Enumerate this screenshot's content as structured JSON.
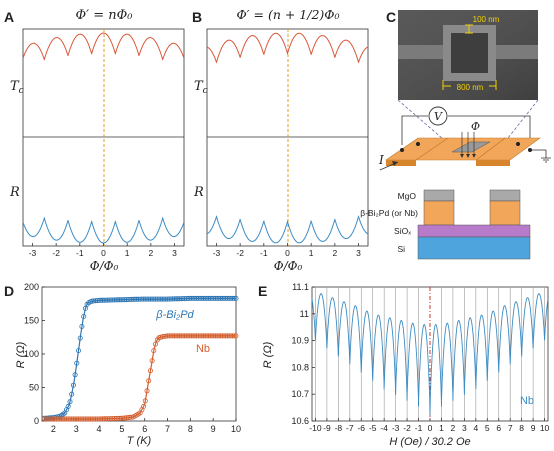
{
  "panels": {
    "A": {
      "label": "A",
      "title": "Φ′ = nΦ₀"
    },
    "B": {
      "label": "B",
      "title": "Φ′ = (n + 1/2)Φ₀"
    },
    "C": {
      "label": "C"
    },
    "D": {
      "label": "D"
    },
    "E": {
      "label": "E"
    }
  },
  "chart_data": [
    {
      "panel": "A",
      "type": "line",
      "title": "Φ′ = nΦ₀",
      "xlabel": "Φ/Φ₀",
      "xlim": [
        -3.4,
        3.4
      ],
      "xticks": [
        "-3",
        "-2",
        "-1",
        "0",
        "1",
        "2",
        "3"
      ],
      "subplots": [
        {
          "ylabel": "T_c",
          "color": "#d9583b",
          "description": "scalloped arcs; cusps at half-integer flux, maxima at integer flux",
          "peak_positions": [
            -3,
            -2,
            -1,
            0,
            1,
            2,
            3
          ]
        },
        {
          "ylabel": "R",
          "color": "#3d8cc4",
          "description": "scalloped arcs; minima at integer flux, cusp maxima at half-integer flux",
          "min_positions": [
            -3,
            -2,
            -1,
            0,
            1,
            2,
            3
          ]
        }
      ],
      "vline": {
        "x": 0,
        "color": "#e0a020",
        "style": "dashed"
      }
    },
    {
      "panel": "B",
      "type": "line",
      "title": "Φ′ = (n + 1/2)Φ₀",
      "xlabel": "Φ/Φ₀",
      "xlim": [
        -3.4,
        3.4
      ],
      "xticks": [
        "-3",
        "-2",
        "-1",
        "0",
        "1",
        "2",
        "3"
      ],
      "subplots": [
        {
          "ylabel": "T_c",
          "color": "#d9583b",
          "description": "scalloped arcs shifted by half a flux quantum; cusps at integer flux",
          "peak_positions": [
            -2.5,
            -1.5,
            -0.5,
            0.5,
            1.5,
            2.5
          ]
        },
        {
          "ylabel": "R",
          "color": "#3d8cc4",
          "description": "scalloped arcs shifted by half a flux quantum; minima at half-integer flux",
          "min_positions": [
            -2.5,
            -1.5,
            -0.5,
            0.5,
            1.5,
            2.5
          ]
        }
      ],
      "vline": {
        "x": 0,
        "color": "#e0a020",
        "style": "dashed"
      }
    },
    {
      "panel": "D",
      "type": "scatter",
      "xlabel": "T (K)",
      "ylabel": "R (Ω)",
      "xlim": [
        1.5,
        10
      ],
      "ylim": [
        0,
        200
      ],
      "xticks": [
        2,
        3,
        4,
        5,
        6,
        7,
        8,
        9,
        10
      ],
      "yticks": [
        0,
        50,
        100,
        150,
        200
      ],
      "series": [
        {
          "name": "β-Bi₂Pd",
          "color": "#2f77b4",
          "x": [
            1.6,
            2.0,
            2.3,
            2.5,
            2.7,
            2.8,
            2.9,
            3.0,
            3.1,
            3.2,
            3.3,
            3.4,
            3.5,
            3.7,
            4.0,
            5.0,
            6.0,
            7.0,
            8.0,
            9.0,
            10.0
          ],
          "y": [
            4,
            5,
            7,
            12,
            25,
            40,
            58,
            80,
            105,
            130,
            152,
            168,
            176,
            179,
            180,
            181,
            182,
            182,
            183,
            183,
            183
          ]
        },
        {
          "name": "Nb",
          "color": "#d35f2f",
          "x": [
            1.6,
            3.0,
            4.0,
            5.0,
            5.5,
            5.8,
            6.0,
            6.1,
            6.2,
            6.3,
            6.4,
            6.5,
            6.6,
            6.8,
            7.0,
            8.0,
            9.0,
            10.0
          ],
          "y": [
            3,
            3,
            3,
            4,
            6,
            12,
            25,
            45,
            65,
            85,
            105,
            118,
            124,
            126,
            127,
            127,
            127,
            127
          ]
        }
      ]
    },
    {
      "panel": "E",
      "type": "line",
      "xlabel": "H (Oe) / 30.2 Oe",
      "ylabel": "R (Ω)",
      "xlim": [
        -10.3,
        10.3
      ],
      "ylim": [
        10.6,
        11.1
      ],
      "xticks": [
        -10,
        -9,
        -8,
        -7,
        -6,
        -5,
        -4,
        -3,
        -2,
        -1,
        0,
        1,
        2,
        3,
        4,
        5,
        6,
        7,
        8,
        9,
        10
      ],
      "yticks": [
        10.6,
        10.7,
        10.8,
        10.9,
        11.0,
        11.1
      ],
      "series": [
        {
          "name": "Nb",
          "color": "#3d8cc4",
          "description": "periodic oscillation with minima at integer x and a slowly varying envelope lowest near x = 0",
          "approx_peak_values": [
            11.08,
            11.07,
            11.05,
            11.04,
            11.02,
            11.0,
            10.99,
            10.98,
            10.97,
            10.96,
            10.96,
            10.96,
            10.97,
            10.98,
            10.99,
            11.0,
            11.02,
            11.04,
            11.05,
            11.07,
            11.08
          ],
          "approx_min_values": [
            10.89,
            10.86,
            10.83,
            10.8,
            10.77,
            10.74,
            10.71,
            10.69,
            10.67,
            10.65,
            10.62,
            10.65,
            10.67,
            10.69,
            10.71,
            10.74,
            10.77,
            10.8,
            10.83,
            10.86,
            10.89
          ]
        }
      ],
      "gridlines": "vertical at integers",
      "vline": {
        "x": 0,
        "color": "#c0392b",
        "style": "dash-dot"
      }
    }
  ],
  "panelC": {
    "scale_top": "100 nm",
    "scale_bottom": "800 nm",
    "meter": "V",
    "current": "I",
    "flux": "Φ",
    "layers": [
      "MgO",
      "β-Bi₂Pd (or Nb)",
      "SiOₓ",
      "Si"
    ]
  },
  "colors": {
    "tc": "#d9583b",
    "r": "#3d8cc4",
    "dash": "#e0a020",
    "bi2pd": "#2f77b4",
    "nb": "#d35f2f",
    "mgo": "#a9a9a9",
    "film": "#f2a65a",
    "siox": "#b77bc9",
    "si": "#4ea4dc"
  }
}
